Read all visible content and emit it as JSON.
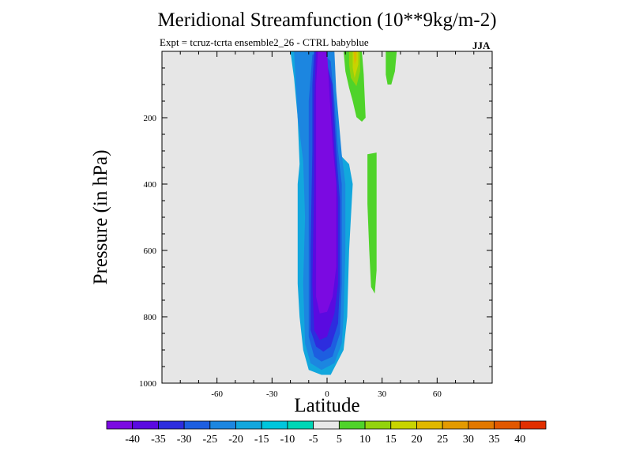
{
  "chart_data": {
    "type": "heatmap",
    "title": "Meridional Streamfunction (10**9kg/m-2)",
    "subtitle": "Expt = tcruz-tcrta  ensemble2_26 - CTRL babyblue",
    "season": "JJA",
    "xlabel": "Latitude",
    "ylabel": "Pressure (in hPa)",
    "xlim": [
      -90,
      90
    ],
    "ylim": [
      1000,
      0
    ],
    "x_ticks": [
      -60,
      -30,
      0,
      30,
      60
    ],
    "x_tick_labels": [
      "-60",
      "-30",
      "0",
      "30",
      "60"
    ],
    "y_ticks": [
      200,
      400,
      600,
      800,
      1000
    ],
    "y_tick_labels": [
      "200",
      "400",
      "600",
      "800",
      "1000"
    ],
    "background": "#e6e6e6",
    "colorbar": {
      "colors": [
        "#7b0ae1",
        "#5a0ae0",
        "#2d2dde",
        "#1d5ee0",
        "#1c86e0",
        "#12a7dd",
        "#00c6dc",
        "#00d6b6",
        "#e8e8e8",
        "#4fd32a",
        "#93d30d",
        "#c8d400",
        "#e0b800",
        "#e39a00",
        "#e27800",
        "#e15800",
        "#e12f00"
      ],
      "labels": [
        "-40",
        "-35",
        "-30",
        "-25",
        "-20",
        "-15",
        "-10",
        "-5",
        "5",
        "10",
        "15",
        "20",
        "25",
        "30",
        "35",
        "40"
      ]
    },
    "contours": [
      {
        "level": "-15",
        "color": "#12a7dd",
        "points": [
          [
            -20,
            0
          ],
          [
            -8,
            0
          ],
          [
            2,
            0
          ],
          [
            3,
            120
          ],
          [
            5,
            300
          ],
          [
            12,
            340
          ],
          [
            14,
            400
          ],
          [
            12,
            600
          ],
          [
            11,
            800
          ],
          [
            9,
            900
          ],
          [
            2,
            975
          ],
          [
            -3,
            975
          ],
          [
            -10,
            960
          ],
          [
            -13,
            900
          ],
          [
            -15,
            800
          ],
          [
            -16,
            700
          ],
          [
            -16,
            400
          ],
          [
            -15,
            340
          ],
          [
            -16,
            200
          ],
          [
            -18,
            80
          ]
        ]
      },
      {
        "level": "-20",
        "color": "#1c86e0",
        "points": [
          [
            -18,
            0
          ],
          [
            -8,
            0
          ],
          [
            4,
            0
          ],
          [
            5,
            120
          ],
          [
            8,
            310
          ],
          [
            10,
            400
          ],
          [
            10,
            600
          ],
          [
            9,
            800
          ],
          [
            8,
            880
          ],
          [
            4,
            940
          ],
          [
            -3,
            960
          ],
          [
            -9,
            940
          ],
          [
            -12,
            880
          ],
          [
            -13,
            700
          ],
          [
            -12,
            500
          ],
          [
            -13,
            330
          ],
          [
            -16,
            200
          ],
          [
            -17,
            100
          ]
        ]
      },
      {
        "level": "-25",
        "color": "#1d5ee0",
        "points": [
          [
            -8,
            10
          ],
          [
            -3,
            0
          ],
          [
            2,
            30
          ],
          [
            4,
            150
          ],
          [
            6,
            300
          ],
          [
            8,
            400
          ],
          [
            8,
            700
          ],
          [
            7,
            850
          ],
          [
            3,
            920
          ],
          [
            -3,
            935
          ],
          [
            -7,
            920
          ],
          [
            -10,
            860
          ],
          [
            -10,
            600
          ],
          [
            -10,
            300
          ],
          [
            -10,
            150
          ]
        ]
      },
      {
        "level": "-30",
        "color": "#2d2dde",
        "points": [
          [
            -7,
            0
          ],
          [
            -2,
            0
          ],
          [
            3,
            100
          ],
          [
            5,
            300
          ],
          [
            7,
            450
          ],
          [
            7,
            700
          ],
          [
            6,
            820
          ],
          [
            2,
            890
          ],
          [
            -2,
            905
          ],
          [
            -6,
            890
          ],
          [
            -9,
            840
          ],
          [
            -9,
            600
          ],
          [
            -8,
            300
          ],
          [
            -8,
            100
          ]
        ]
      },
      {
        "level": "-35",
        "color": "#5a0ae0",
        "points": [
          [
            -6,
            0
          ],
          [
            -1,
            0
          ],
          [
            2,
            100
          ],
          [
            4,
            300
          ],
          [
            6,
            450
          ],
          [
            6,
            700
          ],
          [
            4,
            790
          ],
          [
            0,
            860
          ],
          [
            -4,
            870
          ],
          [
            -7,
            840
          ],
          [
            -8,
            700
          ],
          [
            -7,
            400
          ],
          [
            -7,
            150
          ]
        ]
      },
      {
        "level": "-40",
        "color": "#7b0ae1",
        "points": [
          [
            -5,
            0
          ],
          [
            0,
            0
          ],
          [
            1,
            100
          ],
          [
            3,
            280
          ],
          [
            5,
            400
          ],
          [
            5,
            650
          ],
          [
            3,
            740
          ],
          [
            0,
            785
          ],
          [
            -4,
            790
          ],
          [
            -6,
            740
          ],
          [
            -6,
            600
          ],
          [
            -6,
            350
          ],
          [
            -6,
            100
          ]
        ]
      },
      {
        "level": "10",
        "color": "#4fd32a",
        "points": [
          [
            9,
            0
          ],
          [
            19,
            0
          ],
          [
            20,
            70
          ],
          [
            21,
            200
          ],
          [
            19,
            212
          ],
          [
            16,
            198
          ],
          [
            14,
            150
          ],
          [
            12,
            110
          ],
          [
            10,
            60
          ]
        ]
      },
      {
        "level": "15",
        "color": "#93d30d",
        "points": [
          [
            12,
            0
          ],
          [
            18,
            0
          ],
          [
            18,
            60
          ],
          [
            16,
            105
          ],
          [
            13,
            80
          ],
          [
            12,
            40
          ]
        ]
      },
      {
        "level": "20",
        "color": "#c8d400",
        "points": [
          [
            14,
            0
          ],
          [
            17,
            0
          ],
          [
            17,
            40
          ],
          [
            15,
            80
          ],
          [
            14,
            50
          ]
        ]
      },
      {
        "level": "25",
        "color": "#e0b800",
        "points": [
          [
            14.5,
            0
          ],
          [
            16,
            0
          ],
          [
            16,
            25
          ],
          [
            15,
            40
          ]
        ]
      },
      {
        "level": "10",
        "color": "#4fd32a",
        "points": [
          [
            32,
            0
          ],
          [
            38,
            0
          ],
          [
            37,
            60
          ],
          [
            35,
            100
          ],
          [
            33,
            100
          ],
          [
            32,
            70
          ]
        ]
      },
      {
        "level": "10",
        "color": "#4fd32a",
        "points": [
          [
            22,
            310
          ],
          [
            27,
            305
          ],
          [
            27,
            500
          ],
          [
            27,
            660
          ],
          [
            26,
            730
          ],
          [
            24,
            710
          ],
          [
            23,
            600
          ],
          [
            22,
            460
          ]
        ]
      }
    ]
  }
}
